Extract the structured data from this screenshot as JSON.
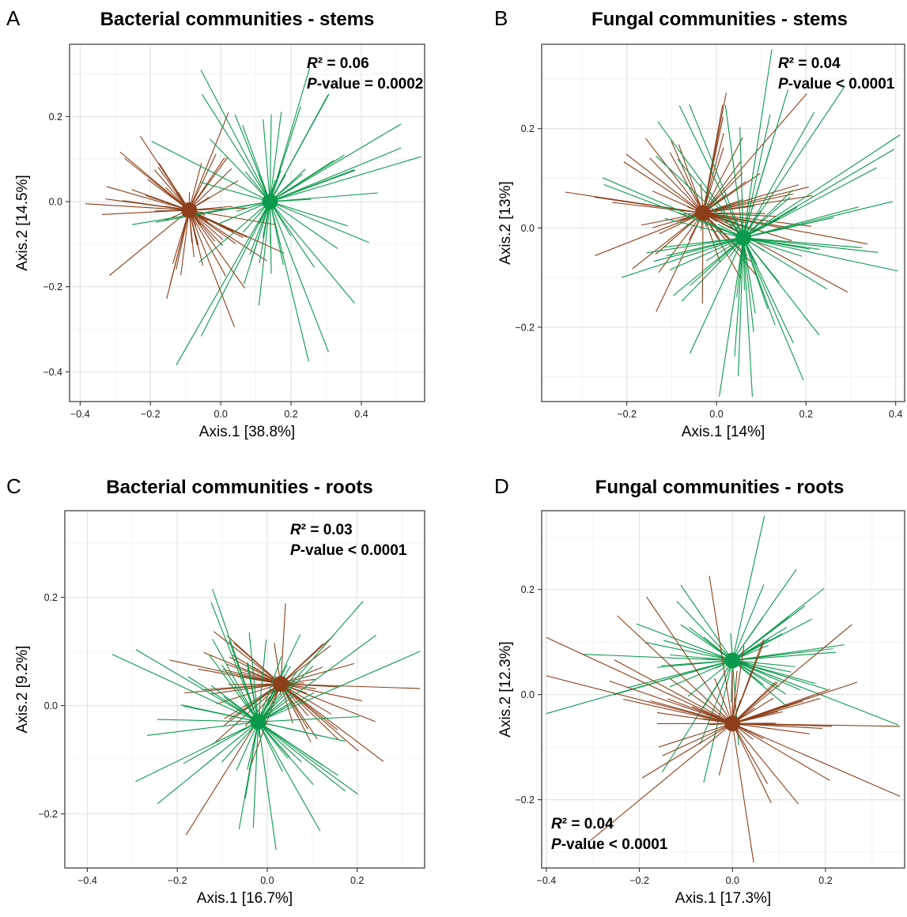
{
  "chart_data": [
    {
      "type": "scatter",
      "letter": "A",
      "title": "Bacterial communities - stems",
      "xlabel": "Axis.1   [38.8%]",
      "ylabel": "Axis.2   [14.5%]",
      "xlim": [
        -0.43,
        0.58
      ],
      "ylim": [
        -0.47,
        0.37
      ],
      "xticks": [
        -0.4,
        -0.2,
        0.0,
        0.2,
        0.4
      ],
      "xtick_labels": [
        "−0.4",
        "−0.2",
        "0.0",
        "0.2",
        "0.4"
      ],
      "yticks": [
        -0.4,
        -0.2,
        0.0,
        0.2
      ],
      "ytick_labels": [
        "−0.4",
        "−0.2",
        "0.0",
        "0.2"
      ],
      "stats": {
        "r2_label": "R",
        "r2_value": "² = 0.06",
        "p_label": "P",
        "p_value": "-value = 0.0002"
      },
      "stats_position": "top-right",
      "grid": true,
      "series": [
        {
          "color": "#8c3f1a",
          "centroid": [
            -0.09,
            -0.02
          ],
          "spread": [
            0.13,
            0.11
          ],
          "n": 60
        },
        {
          "color": "#0b9a4c",
          "centroid": [
            0.14,
            0.0
          ],
          "spread": [
            0.17,
            0.17
          ],
          "n": 60
        }
      ]
    },
    {
      "type": "scatter",
      "letter": "B",
      "title": "Fungal communities - stems",
      "xlabel": "Axis.1   [14%]",
      "ylabel": "Axis.2   [13%]",
      "xlim": [
        -0.39,
        0.42
      ],
      "ylim": [
        -0.35,
        0.37
      ],
      "xticks": [
        -0.2,
        0.0,
        0.2,
        0.4
      ],
      "xtick_labels": [
        "−0.2",
        "0.0",
        "0.2",
        "0.4"
      ],
      "yticks": [
        -0.2,
        0.0,
        0.2
      ],
      "ytick_labels": [
        "−0.2",
        "0.0",
        "0.2"
      ],
      "stats": {
        "r2_label": "R",
        "r2_value": "² = 0.04",
        "p_label": "P",
        "p_value": "-value < 0.0001"
      },
      "stats_position": "top-right",
      "grid": true,
      "series": [
        {
          "color": "#8c3f1a",
          "centroid": [
            -0.03,
            0.03
          ],
          "spread": [
            0.14,
            0.1
          ],
          "n": 70
        },
        {
          "color": "#0b9a4c",
          "centroid": [
            0.06,
            -0.02
          ],
          "spread": [
            0.16,
            0.14
          ],
          "n": 70
        }
      ]
    },
    {
      "type": "scatter",
      "letter": "C",
      "title": "Bacterial communities - roots",
      "xlabel": "Axis.1   [16.7%]",
      "ylabel": "Axis.2   [9.2%]",
      "xlim": [
        -0.45,
        0.35
      ],
      "ylim": [
        -0.3,
        0.36
      ],
      "xticks": [
        -0.4,
        -0.2,
        0.0,
        0.2
      ],
      "xtick_labels": [
        "−0.4",
        "−0.2",
        "0.0",
        "0.2"
      ],
      "yticks": [
        -0.2,
        0.0,
        0.2
      ],
      "ytick_labels": [
        "−0.2",
        "0.0",
        "0.2"
      ],
      "stats": {
        "r2_label": "R",
        "r2_value": "² = 0.03",
        "p_label": "P",
        "p_value": "-value < 0.0001"
      },
      "stats_position": "top-right",
      "grid": true,
      "series": [
        {
          "color": "#8c3f1a",
          "centroid": [
            0.03,
            0.04
          ],
          "spread": [
            0.14,
            0.08
          ],
          "n": 60
        },
        {
          "color": "#0b9a4c",
          "centroid": [
            -0.02,
            -0.03
          ],
          "spread": [
            0.17,
            0.12
          ],
          "n": 60
        }
      ]
    },
    {
      "type": "scatter",
      "letter": "D",
      "title": "Fungal communities - roots",
      "xlabel": "Axis.1   [17.3%]",
      "ylabel": "Axis.2   [12.3%]",
      "xlim": [
        -0.41,
        0.37
      ],
      "ylim": [
        -0.33,
        0.35
      ],
      "xticks": [
        -0.4,
        -0.2,
        0.0,
        0.2
      ],
      "xtick_labels": [
        "−0.4",
        "−0.2",
        "0.0",
        "0.2"
      ],
      "yticks": [
        -0.2,
        0.0,
        0.2
      ],
      "ytick_labels": [
        "−0.2",
        "0.0",
        "0.2"
      ],
      "stats": {
        "r2_label": "R",
        "r2_value": "² = 0.04",
        "p_label": "P",
        "p_value": "-value < 0.0001"
      },
      "stats_position": "bottom-left",
      "grid": true,
      "series": [
        {
          "color": "#0b9a4c",
          "centroid": [
            0.0,
            0.065
          ],
          "spread": [
            0.17,
            0.1
          ],
          "n": 55
        },
        {
          "color": "#8c3f1a",
          "centroid": [
            0.0,
            -0.055
          ],
          "spread": [
            0.16,
            0.1
          ],
          "n": 55
        }
      ]
    }
  ]
}
